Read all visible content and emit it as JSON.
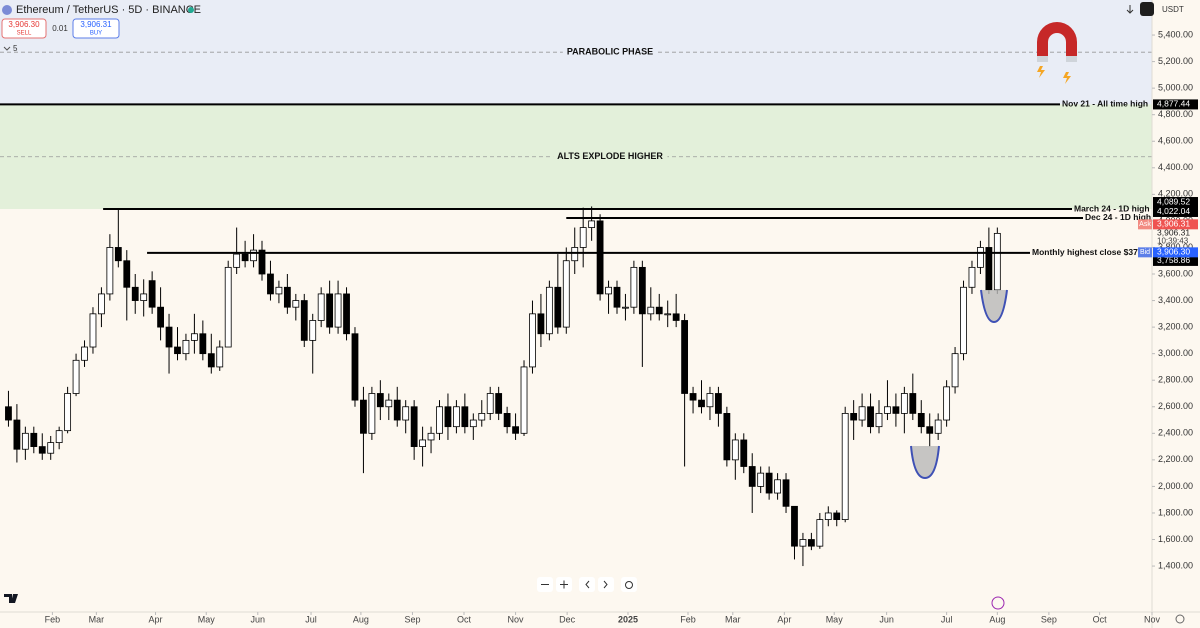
{
  "header": {
    "symbol": "Ethereum / TetherUS · 5D · BINANCE",
    "sell_price": "3,906.30",
    "sell": "SELL",
    "spread": "0.01",
    "buy_price": "3,906.31",
    "buy": "BUY",
    "interval_count": "5",
    "currency": "USDT"
  },
  "chart_data": {
    "type": "candlestick",
    "up_color": "#ffffff",
    "down_color": "#000000",
    "outline_color": "#000000",
    "ylim": [
      1054,
      5664
    ],
    "xlim": [
      -1.0,
      135.3
    ],
    "yticks": [
      {
        "value": 1400,
        "label": "1,400.00"
      },
      {
        "value": 1600,
        "label": "1,600.00"
      },
      {
        "value": 1800,
        "label": "1,800.00"
      },
      {
        "value": 2000,
        "label": "2,000.00"
      },
      {
        "value": 2200,
        "label": "2,200.00"
      },
      {
        "value": 2400,
        "label": "2,400.00"
      },
      {
        "value": 2600,
        "label": "2,600.00"
      },
      {
        "value": 2800,
        "label": "2,800.00"
      },
      {
        "value": 3000,
        "label": "3,000.00"
      },
      {
        "value": 3200,
        "label": "3,200.00"
      },
      {
        "value": 3400,
        "label": "3,400.00"
      },
      {
        "value": 3600,
        "label": "3,600.00"
      },
      {
        "value": 3800,
        "label": "3,800.00"
      },
      {
        "value": 4000,
        "label": "4,000.00"
      },
      {
        "value": 4200,
        "label": "4,200.00"
      },
      {
        "value": 4400,
        "label": "4,400.00"
      },
      {
        "value": 4600,
        "label": "4,600.00"
      },
      {
        "value": 4800,
        "label": "4,800.00"
      },
      {
        "value": 5000,
        "label": "5,000.00"
      },
      {
        "value": 5200,
        "label": "5,200.00"
      },
      {
        "value": 5400,
        "label": "5,400.00"
      }
    ],
    "xticks": [
      {
        "value": 5.2,
        "label": "Feb"
      },
      {
        "value": 10.4,
        "label": "Mar"
      },
      {
        "value": 17.4,
        "label": "Apr"
      },
      {
        "value": 23.4,
        "label": "May"
      },
      {
        "value": 29.5,
        "label": "Jun"
      },
      {
        "value": 35.8,
        "label": "Jul"
      },
      {
        "value": 41.7,
        "label": "Aug"
      },
      {
        "value": 47.8,
        "label": "Sep"
      },
      {
        "value": 53.9,
        "label": "Oct"
      },
      {
        "value": 60.0,
        "label": "Nov"
      },
      {
        "value": 66.1,
        "label": "Dec"
      },
      {
        "value": 73.3,
        "label": "2025"
      },
      {
        "value": 80.4,
        "label": "Feb"
      },
      {
        "value": 85.7,
        "label": "Mar"
      },
      {
        "value": 91.8,
        "label": "Apr"
      },
      {
        "value": 97.7,
        "label": "May"
      },
      {
        "value": 103.9,
        "label": "Jun"
      },
      {
        "value": 111.0,
        "label": "Jul"
      },
      {
        "value": 117.0,
        "label": "Aug"
      },
      {
        "value": 123.1,
        "label": "Sep"
      },
      {
        "value": 129.1,
        "label": "Oct"
      },
      {
        "value": 135.3,
        "label": "Nov"
      }
    ],
    "zones": [
      {
        "label": "PARABOLIC PHASE",
        "color": "#e9edf6"
      },
      {
        "label": "ALTS EXPLODE HIGHER",
        "color": "#e3f0da"
      }
    ],
    "levels": [
      {
        "value": 4877.44,
        "label": "4,877.44",
        "note": "Nov 21 - All time high"
      },
      {
        "value": 4089.52,
        "label": "4,089.52",
        "note": "March 24 - 1D high"
      },
      {
        "value": 4022.04,
        "label": "4,022.04",
        "note": "Dec 24 - 1D high"
      },
      {
        "value": 3758.86,
        "label": "3,758.86",
        "note": "Monthly highest close $37"
      }
    ],
    "quote": {
      "ask_tag": "Ask",
      "ask": {
        "value": 3906.31,
        "label": "3,906.31"
      },
      "last": {
        "value": 3906.31,
        "label": "3,906.31"
      },
      "countdown": "10:39:43",
      "bid_tag": "Bid",
      "bid": {
        "value": 3906.3,
        "label": "3,906.30"
      }
    },
    "ohlc": [
      [
        2600,
        2720,
        2450,
        2500
      ],
      [
        2500,
        2620,
        2180,
        2280
      ],
      [
        2280,
        2450,
        2200,
        2400
      ],
      [
        2400,
        2450,
        2250,
        2300
      ],
      [
        2300,
        2400,
        2200,
        2250
      ],
      [
        2250,
        2380,
        2200,
        2330
      ],
      [
        2330,
        2450,
        2280,
        2420
      ],
      [
        2420,
        2750,
        2400,
        2700
      ],
      [
        2700,
        3000,
        2680,
        2950
      ],
      [
        2950,
        3100,
        2900,
        3050
      ],
      [
        3050,
        3350,
        3000,
        3300
      ],
      [
        3300,
        3500,
        3200,
        3450
      ],
      [
        3450,
        3900,
        3400,
        3800
      ],
      [
        3800,
        4090,
        3650,
        3700
      ],
      [
        3700,
        3780,
        3250,
        3500
      ],
      [
        3500,
        3600,
        3300,
        3400
      ],
      [
        3400,
        3560,
        3280,
        3450
      ],
      [
        3550,
        3620,
        3300,
        3350
      ],
      [
        3350,
        3500,
        3100,
        3200
      ],
      [
        3200,
        3300,
        2850,
        3050
      ],
      [
        3050,
        3200,
        2950,
        3000
      ],
      [
        3000,
        3150,
        2950,
        3100
      ],
      [
        3100,
        3300,
        3000,
        3150
      ],
      [
        3150,
        3250,
        2950,
        3000
      ],
      [
        3000,
        3150,
        2850,
        2900
      ],
      [
        2900,
        3100,
        2870,
        3050
      ],
      [
        3050,
        3700,
        3050,
        3650
      ],
      [
        3650,
        3950,
        3600,
        3750
      ],
      [
        3750,
        3850,
        3650,
        3700
      ],
      [
        3700,
        3900,
        3650,
        3780
      ],
      [
        3780,
        3850,
        3550,
        3600
      ],
      [
        3600,
        3700,
        3400,
        3450
      ],
      [
        3450,
        3550,
        3380,
        3500
      ],
      [
        3500,
        3600,
        3300,
        3350
      ],
      [
        3350,
        3450,
        3250,
        3400
      ],
      [
        3400,
        3450,
        3050,
        3100
      ],
      [
        3100,
        3300,
        2850,
        3250
      ],
      [
        3250,
        3500,
        3200,
        3450
      ],
      [
        3450,
        3550,
        3150,
        3200
      ],
      [
        3200,
        3550,
        3150,
        3450
      ],
      [
        3450,
        3500,
        3100,
        3150
      ],
      [
        3150,
        3200,
        2600,
        2650
      ],
      [
        2650,
        2750,
        2100,
        2400
      ],
      [
        2400,
        2750,
        2350,
        2700
      ],
      [
        2700,
        2800,
        2500,
        2600
      ],
      [
        2600,
        2700,
        2500,
        2650
      ],
      [
        2650,
        2750,
        2450,
        2500
      ],
      [
        2500,
        2650,
        2400,
        2600
      ],
      [
        2600,
        2650,
        2200,
        2300
      ],
      [
        2300,
        2450,
        2150,
        2350
      ],
      [
        2350,
        2450,
        2250,
        2400
      ],
      [
        2400,
        2650,
        2350,
        2600
      ],
      [
        2600,
        2700,
        2350,
        2450
      ],
      [
        2450,
        2650,
        2400,
        2600
      ],
      [
        2600,
        2700,
        2400,
        2450
      ],
      [
        2450,
        2550,
        2350,
        2500
      ],
      [
        2500,
        2650,
        2450,
        2550
      ],
      [
        2550,
        2750,
        2500,
        2700
      ],
      [
        2700,
        2750,
        2500,
        2550
      ],
      [
        2550,
        2600,
        2400,
        2450
      ],
      [
        2450,
        2550,
        2350,
        2400
      ],
      [
        2400,
        2950,
        2380,
        2900
      ],
      [
        2900,
        3400,
        2850,
        3300
      ],
      [
        3300,
        3450,
        3050,
        3150
      ],
      [
        3150,
        3550,
        3100,
        3500
      ],
      [
        3500,
        3750,
        3150,
        3200
      ],
      [
        3200,
        3800,
        3150,
        3700
      ],
      [
        3700,
        3950,
        3600,
        3800
      ],
      [
        3800,
        4100,
        3650,
        3950
      ],
      [
        3950,
        4109,
        3850,
        4000
      ],
      [
        4000,
        4050,
        3400,
        3450
      ],
      [
        3450,
        3550,
        3300,
        3500
      ],
      [
        3500,
        3550,
        3300,
        3350
      ],
      [
        3350,
        3450,
        3250,
        3350
      ],
      [
        3350,
        3700,
        3300,
        3650
      ],
      [
        3650,
        3700,
        2900,
        3300
      ],
      [
        3300,
        3500,
        3250,
        3350
      ],
      [
        3350,
        3450,
        3250,
        3300
      ],
      [
        3300,
        3400,
        3200,
        3300
      ],
      [
        3300,
        3450,
        3200,
        3250
      ],
      [
        3250,
        3300,
        2150,
        2700
      ],
      [
        2700,
        2750,
        2550,
        2650
      ],
      [
        2650,
        2800,
        2550,
        2600
      ],
      [
        2600,
        2750,
        2500,
        2700
      ],
      [
        2700,
        2750,
        2450,
        2550
      ],
      [
        2550,
        2600,
        2150,
        2200
      ],
      [
        2200,
        2400,
        2050,
        2350
      ],
      [
        2350,
        2400,
        2100,
        2150
      ],
      [
        2150,
        2250,
        1800,
        2000
      ],
      [
        2000,
        2150,
        1950,
        2100
      ],
      [
        2100,
        2150,
        1900,
        1950
      ],
      [
        1950,
        2100,
        1900,
        2050
      ],
      [
        2050,
        2100,
        1800,
        1850
      ],
      [
        1850,
        1850,
        1450,
        1550
      ],
      [
        1550,
        1650,
        1400,
        1600
      ],
      [
        1600,
        1650,
        1520,
        1550
      ],
      [
        1550,
        1800,
        1530,
        1750
      ],
      [
        1750,
        1850,
        1700,
        1800
      ],
      [
        1800,
        1820,
        1700,
        1750
      ],
      [
        1750,
        2600,
        1730,
        2550
      ],
      [
        2550,
        2650,
        2350,
        2500
      ],
      [
        2500,
        2700,
        2450,
        2600
      ],
      [
        2600,
        2700,
        2400,
        2450
      ],
      [
        2450,
        2650,
        2400,
        2550
      ],
      [
        2550,
        2800,
        2500,
        2600
      ],
      [
        2600,
        2700,
        2450,
        2550
      ],
      [
        2550,
        2750,
        2400,
        2700
      ],
      [
        2700,
        2850,
        2500,
        2550
      ],
      [
        2550,
        2650,
        2400,
        2450
      ],
      [
        2450,
        2550,
        2300,
        2400
      ],
      [
        2400,
        2550,
        2350,
        2500
      ],
      [
        2500,
        2800,
        2450,
        2750
      ],
      [
        2750,
        3050,
        2700,
        3000
      ],
      [
        3000,
        3550,
        2950,
        3500
      ],
      [
        3500,
        3700,
        3450,
        3650
      ],
      [
        3650,
        3850,
        3600,
        3800
      ],
      [
        3800,
        3950,
        3450,
        3480
      ],
      [
        3480,
        3950,
        3450,
        3906
      ]
    ]
  }
}
